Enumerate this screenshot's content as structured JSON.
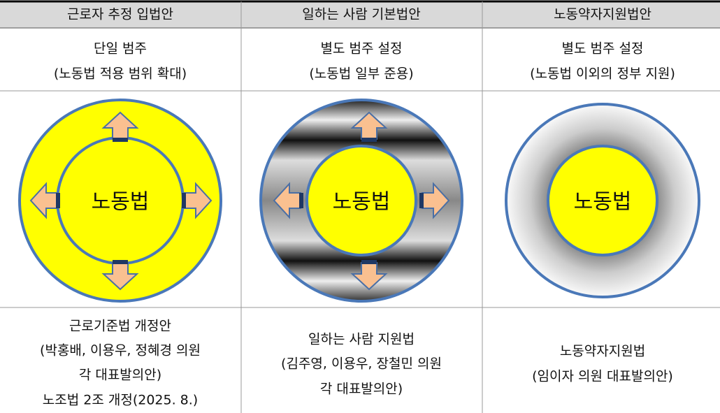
{
  "table": {
    "headers": [
      "근로자 추정 입법안",
      "일하는 사람 기본법안",
      "노동약자지원법안"
    ],
    "summary": [
      [
        "단일 범주",
        "(노동법 적용 범위 확대)"
      ],
      [
        "별도 범주 설정",
        "(노동법 일부 준용)"
      ],
      [
        "별도 범주 설정",
        "(노동법 이외의 정부 지원)"
      ]
    ],
    "diagram_label": [
      "노동법",
      "노동법",
      "노동법"
    ],
    "bills": [
      [
        "근로기준법 개정안",
        "(박홍배, 이용우, 정혜경 의원",
        "각 대표발의안)",
        "노조법 2조 개정(2025. 8.)"
      ],
      [
        "일하는 사람 지원법",
        "(김주영, 이용우, 장철민 의원",
        "각 대표발의안)"
      ],
      [
        "노동약자지원법",
        "(임이자 의원 대표발의안)"
      ]
    ]
  }
}
